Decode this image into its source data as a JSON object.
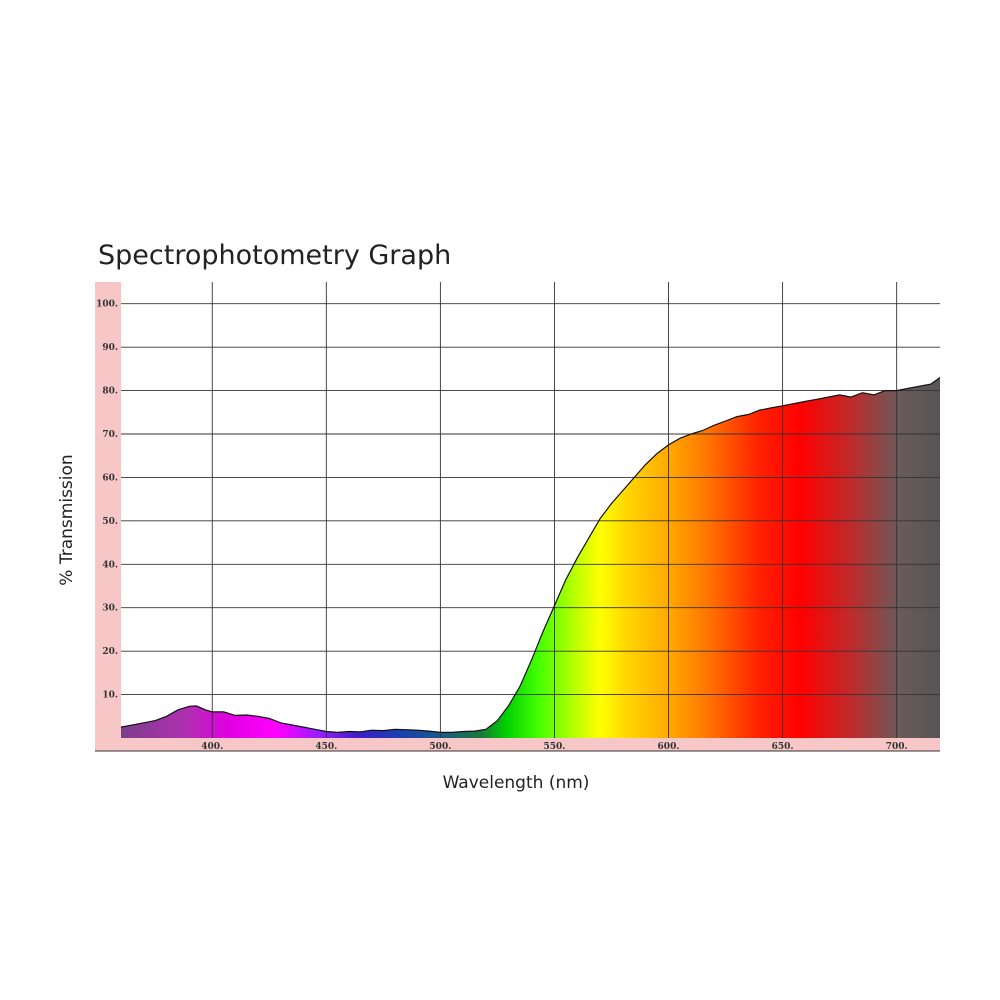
{
  "chart_data": {
    "type": "area",
    "title": "Spectrophotometry Graph",
    "xlabel": "Wavelength (nm)",
    "ylabel": "% Transmission",
    "xlim": [
      360,
      719
    ],
    "ylim": [
      0,
      105
    ],
    "x_ticks": [
      400,
      450,
      500,
      550,
      600,
      650,
      700
    ],
    "x_tick_labels": [
      "400.",
      "450.",
      "500.",
      "550.",
      "600.",
      "650.",
      "700."
    ],
    "y_ticks": [
      10,
      20,
      30,
      40,
      50,
      60,
      70,
      80,
      90,
      100
    ],
    "y_tick_labels": [
      "10.",
      "20.",
      "30.",
      "40.",
      "50.",
      "60.",
      "70.",
      "80.",
      "90.",
      "100."
    ],
    "grid": true,
    "series": [
      {
        "x": [
          360,
          363,
          370,
          375,
          380,
          385,
          390,
          393,
          397,
          400,
          405,
          410,
          415,
          420,
          425,
          430,
          435,
          440,
          445,
          450,
          455,
          460,
          465,
          470,
          475,
          480,
          485,
          490,
          495,
          500,
          505,
          510,
          515,
          520,
          525,
          530,
          535,
          540,
          545,
          550,
          555,
          560,
          565,
          570,
          575,
          580,
          585,
          590,
          595,
          600,
          605,
          610,
          615,
          620,
          625,
          630,
          635,
          640,
          645,
          650,
          655,
          660,
          665,
          670,
          675,
          680,
          685,
          690,
          695,
          700,
          705,
          710,
          715,
          719
        ],
        "y": [
          2.5,
          2.8,
          3.5,
          4.0,
          5.0,
          6.5,
          7.3,
          7.4,
          6.5,
          6.0,
          6.0,
          5.2,
          5.3,
          5.0,
          4.5,
          3.5,
          3.0,
          2.5,
          2.0,
          1.5,
          1.3,
          1.5,
          1.4,
          1.8,
          1.7,
          2.0,
          1.9,
          1.8,
          1.6,
          1.3,
          1.3,
          1.5,
          1.6,
          2.0,
          4.0,
          7.5,
          12.0,
          18.0,
          24.5,
          30.5,
          36.5,
          41.5,
          46.0,
          50.5,
          54.0,
          57.0,
          60.0,
          63.0,
          65.5,
          67.5,
          69.0,
          70.0,
          70.8,
          72.0,
          73.0,
          74.0,
          74.5,
          75.5,
          76.0,
          76.5,
          77.0,
          77.5,
          78.0,
          78.5,
          79.0,
          78.5,
          79.5,
          79.0,
          80.0,
          80.0,
          80.5,
          81.0,
          81.5,
          83.0
        ]
      }
    ],
    "colors": {
      "frame": "#f7c6c6",
      "grid": "#333333",
      "outline": "#111111"
    }
  }
}
